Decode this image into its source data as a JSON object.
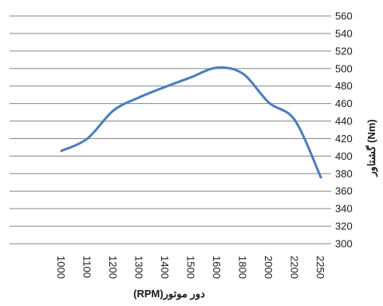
{
  "chart_data": {
    "type": "line",
    "title": "",
    "xlabel": "دور موتور(RPM)",
    "ylabel": "گشتاور (Nm)",
    "categories": [
      "1000",
      "1100",
      "1200",
      "1300",
      "1400",
      "1500",
      "1600",
      "1800",
      "2000",
      "2200",
      "2250"
    ],
    "series": [
      {
        "values": [
          406,
          420,
          452,
          467,
          479,
          490,
          501,
          494,
          461,
          441,
          376
        ],
        "color": "#4a7ebb"
      }
    ],
    "ylim": [
      300,
      560
    ],
    "ytick_step": 20,
    "yticks": [
      "300",
      "320",
      "340",
      "360",
      "380",
      "400",
      "420",
      "440",
      "460",
      "480",
      "500",
      "520",
      "540",
      "560"
    ],
    "grid": true,
    "gridline_color": "#868686",
    "axis_side": "right",
    "legend": "none"
  }
}
